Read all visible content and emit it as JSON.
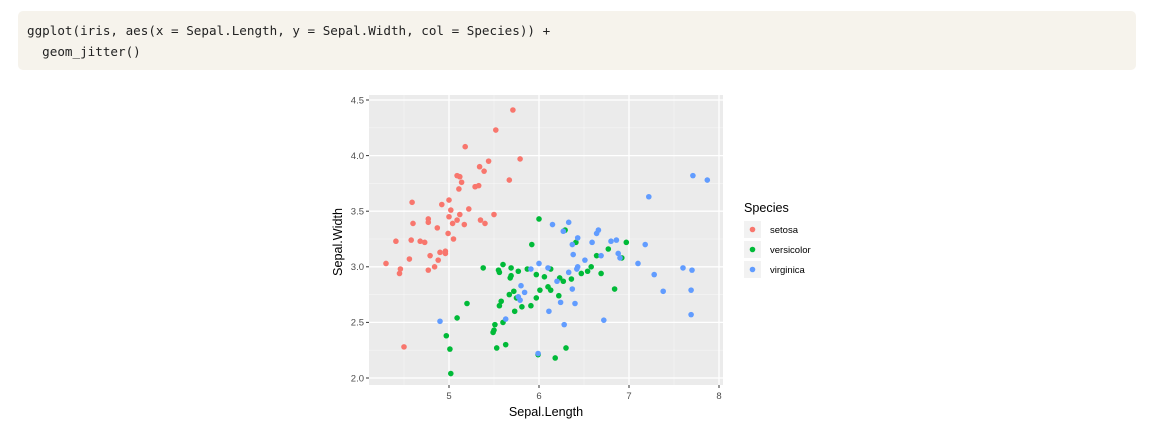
{
  "code": {
    "lines": [
      "ggplot(iris, aes(x = Sepal.Length, y = Sepal.Width, col = Species)) +",
      "  geom_jitter()"
    ]
  },
  "chart_data": {
    "type": "scatter",
    "title": "",
    "xlabel": "Sepal.Length",
    "ylabel": "Sepal.Width",
    "xlim": [
      4.2,
      8.0
    ],
    "ylim": [
      1.95,
      4.5
    ],
    "x_ticks": [
      5,
      6,
      7,
      8
    ],
    "y_ticks": [
      2.0,
      2.5,
      3.0,
      3.5,
      4.0,
      4.5
    ],
    "x_tick_labels": [
      "5",
      "6",
      "7",
      "8"
    ],
    "y_tick_labels": [
      "2.0",
      "2.5",
      "3.0",
      "3.5",
      "4.0",
      "4.5"
    ],
    "grid": true,
    "panel_background": "#ebebeb",
    "legend": {
      "title": "Species",
      "placement": "right"
    },
    "series": [
      {
        "name": "setosa",
        "color": "#f8766d",
        "points": [
          [
            4.3,
            3.03
          ],
          [
            4.41,
            3.23
          ],
          [
            4.45,
            2.94
          ],
          [
            4.46,
            2.98
          ],
          [
            4.5,
            2.28
          ],
          [
            4.56,
            3.07
          ],
          [
            4.58,
            3.24
          ],
          [
            4.6,
            3.39
          ],
          [
            4.59,
            3.58
          ],
          [
            4.68,
            3.23
          ],
          [
            4.73,
            3.22
          ],
          [
            4.77,
            3.4
          ],
          [
            4.77,
            3.43
          ],
          [
            4.77,
            2.97
          ],
          [
            4.79,
            3.1
          ],
          [
            4.84,
            3.0
          ],
          [
            4.87,
            3.35
          ],
          [
            4.88,
            3.06
          ],
          [
            4.9,
            3.13
          ],
          [
            4.92,
            3.56
          ],
          [
            4.96,
            3.14
          ],
          [
            4.96,
            3.12
          ],
          [
            4.99,
            3.3
          ],
          [
            5.0,
            3.45
          ],
          [
            5.0,
            3.6
          ],
          [
            5.02,
            3.51
          ],
          [
            5.04,
            3.39
          ],
          [
            5.05,
            3.25
          ],
          [
            5.09,
            3.42
          ],
          [
            5.12,
            3.47
          ],
          [
            5.11,
            3.7
          ],
          [
            5.09,
            3.82
          ],
          [
            5.12,
            3.81
          ],
          [
            5.14,
            3.76
          ],
          [
            5.17,
            3.38
          ],
          [
            5.18,
            4.08
          ],
          [
            5.22,
            3.52
          ],
          [
            5.29,
            3.72
          ],
          [
            5.33,
            3.73
          ],
          [
            5.34,
            3.9
          ],
          [
            5.35,
            3.42
          ],
          [
            5.4,
            3.39
          ],
          [
            5.39,
            3.86
          ],
          [
            5.44,
            3.95
          ],
          [
            5.5,
            3.47
          ],
          [
            5.52,
            4.23
          ],
          [
            5.67,
            3.78
          ],
          [
            5.71,
            4.41
          ],
          [
            5.79,
            3.97
          ]
        ]
      },
      {
        "name": "versicolor",
        "color": "#00ba38",
        "points": [
          [
            4.97,
            2.38
          ],
          [
            5.01,
            2.26
          ],
          [
            5.02,
            2.04
          ],
          [
            5.09,
            2.54
          ],
          [
            5.2,
            2.67
          ],
          [
            5.38,
            2.99
          ],
          [
            5.49,
            2.41
          ],
          [
            5.5,
            2.43
          ],
          [
            5.51,
            2.48
          ],
          [
            5.53,
            2.27
          ],
          [
            5.56,
            2.65
          ],
          [
            5.55,
            2.97
          ],
          [
            5.56,
            2.95
          ],
          [
            5.6,
            3.02
          ],
          [
            5.6,
            2.5
          ],
          [
            5.58,
            2.69
          ],
          [
            5.63,
            2.3
          ],
          [
            5.67,
            2.75
          ],
          [
            5.68,
            2.9
          ],
          [
            5.69,
            2.99
          ],
          [
            5.69,
            2.92
          ],
          [
            5.72,
            2.78
          ],
          [
            5.73,
            2.6
          ],
          [
            5.75,
            2.72
          ],
          [
            5.77,
            2.96
          ],
          [
            5.81,
            2.64
          ],
          [
            5.87,
            2.98
          ],
          [
            5.91,
            2.65
          ],
          [
            5.92,
            3.2
          ],
          [
            5.97,
            2.72
          ],
          [
            5.97,
            2.93
          ],
          [
            5.99,
            2.21
          ],
          [
            6.0,
            3.43
          ],
          [
            6.01,
            2.79
          ],
          [
            6.06,
            2.91
          ],
          [
            6.1,
            2.82
          ],
          [
            6.13,
            2.98
          ],
          [
            6.13,
            2.79
          ],
          [
            6.18,
            2.18
          ],
          [
            6.22,
            2.74
          ],
          [
            6.23,
            2.9
          ],
          [
            6.27,
            2.87
          ],
          [
            6.29,
            3.33
          ],
          [
            6.3,
            2.27
          ],
          [
            6.36,
            2.89
          ],
          [
            6.41,
            3.22
          ],
          [
            6.47,
            2.94
          ],
          [
            6.54,
            2.96
          ],
          [
            6.58,
            3.0
          ],
          [
            6.64,
            3.1
          ],
          [
            6.69,
            2.94
          ],
          [
            6.77,
            3.16
          ],
          [
            6.84,
            2.8
          ],
          [
            6.92,
            3.08
          ],
          [
            6.97,
            3.22
          ]
        ]
      },
      {
        "name": "virginica",
        "color": "#619cff",
        "points": [
          [
            4.9,
            2.51
          ],
          [
            5.63,
            2.53
          ],
          [
            5.77,
            2.73
          ],
          [
            5.79,
            2.7
          ],
          [
            5.8,
            2.83
          ],
          [
            5.84,
            2.77
          ],
          [
            5.91,
            2.98
          ],
          [
            5.99,
            2.22
          ],
          [
            6.0,
            3.03
          ],
          [
            6.1,
            2.99
          ],
          [
            6.11,
            2.6
          ],
          [
            6.15,
            3.38
          ],
          [
            6.2,
            2.87
          ],
          [
            6.24,
            2.68
          ],
          [
            6.27,
            3.32
          ],
          [
            6.28,
            2.48
          ],
          [
            6.33,
            2.95
          ],
          [
            6.33,
            3.4
          ],
          [
            6.37,
            3.2
          ],
          [
            6.37,
            2.8
          ],
          [
            6.38,
            3.11
          ],
          [
            6.4,
            2.67
          ],
          [
            6.42,
            2.98
          ],
          [
            6.43,
            3.0
          ],
          [
            6.43,
            3.26
          ],
          [
            6.51,
            3.06
          ],
          [
            6.59,
            3.22
          ],
          [
            6.64,
            3.3
          ],
          [
            6.66,
            3.33
          ],
          [
            6.69,
            3.1
          ],
          [
            6.72,
            2.52
          ],
          [
            6.8,
            3.23
          ],
          [
            6.86,
            3.24
          ],
          [
            6.88,
            3.12
          ],
          [
            6.9,
            3.08
          ],
          [
            7.1,
            3.03
          ],
          [
            7.18,
            3.2
          ],
          [
            7.22,
            3.63
          ],
          [
            7.28,
            2.93
          ],
          [
            7.38,
            2.78
          ],
          [
            7.6,
            2.99
          ],
          [
            7.69,
            2.79
          ],
          [
            7.69,
            2.57
          ],
          [
            7.7,
            2.97
          ],
          [
            7.71,
            3.82
          ],
          [
            7.87,
            3.78
          ]
        ]
      }
    ]
  }
}
